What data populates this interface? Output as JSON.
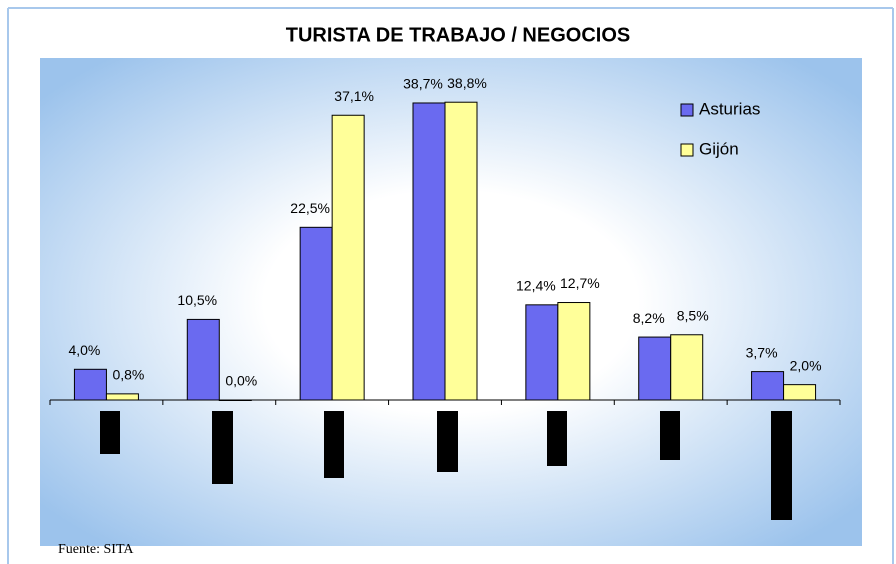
{
  "chart_data": {
    "type": "bar",
    "title": "TURISTA DE TRABAJO / NEGOCIOS",
    "categories": [
      null,
      null,
      null,
      null,
      null,
      null,
      null
    ],
    "series": [
      {
        "name": "Asturias",
        "color": "#6a6af0",
        "values": [
          4.0,
          10.5,
          22.5,
          38.7,
          12.4,
          8.2,
          3.7
        ],
        "value_labels": [
          "4,0%",
          "10,5%",
          "22,5%",
          "38,7%",
          "12,4%",
          "8,2%",
          "3,7%"
        ]
      },
      {
        "name": "Gijón",
        "color": "#ffff99",
        "values": [
          0.8,
          0.0,
          37.1,
          38.8,
          12.7,
          8.5,
          2.0
        ],
        "value_labels": [
          "0,8%",
          "0,0%",
          "37,1%",
          "38,8%",
          "12,7%",
          "8,5%",
          "2,0%"
        ]
      }
    ],
    "ylim": [
      0,
      40
    ],
    "legend": "upper right",
    "source": "Fuente: SITA"
  }
}
